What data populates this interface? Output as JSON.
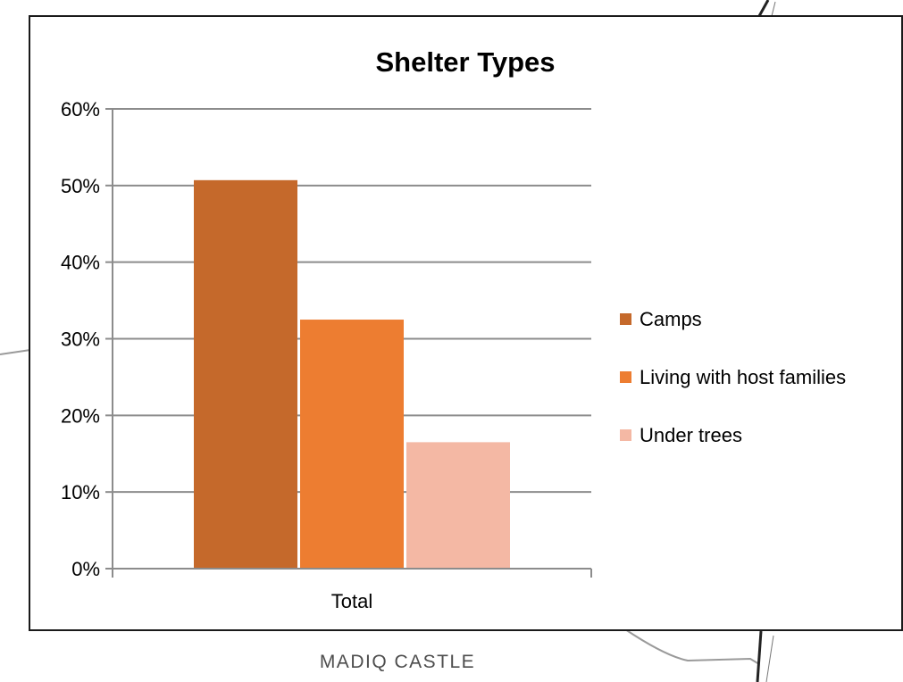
{
  "caption": "MADIQ CASTLE",
  "chart_data": {
    "type": "bar",
    "title": "Shelter Types",
    "categories": [
      "Total"
    ],
    "series": [
      {
        "name": "Camps",
        "values": [
          50.7
        ],
        "color": "#c5692b"
      },
      {
        "name": "Living with host families",
        "values": [
          32.5
        ],
        "color": "#ed7d31"
      },
      {
        "name": "Under trees",
        "values": [
          16.5
        ],
        "color": "#f4b8a4"
      }
    ],
    "ylim": [
      0,
      60
    ],
    "yticks": [
      "0%",
      "10%",
      "20%",
      "30%",
      "40%",
      "50%",
      "60%"
    ],
    "y_unit": "percent",
    "grid": true,
    "legend_position": "right",
    "xlabel": "",
    "ylabel": ""
  }
}
